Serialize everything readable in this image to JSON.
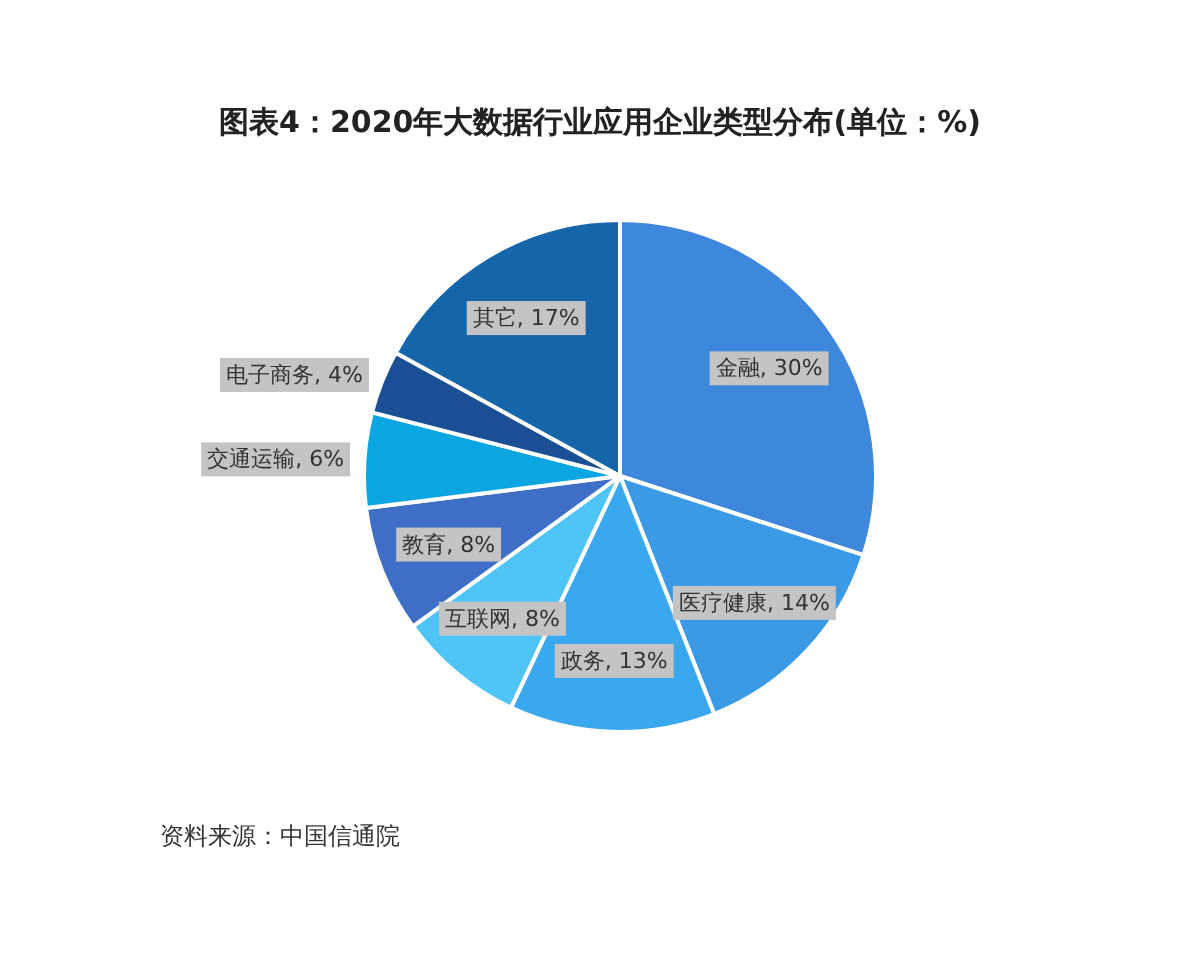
{
  "chart_data": {
    "type": "pie",
    "title": "图表4：2020年大数据行业应用企业类型分布(单位：%)",
    "categories": [
      "金融",
      "医疗健康",
      "政务",
      "互联网",
      "教育",
      "交通运输",
      "电子商务",
      "其它"
    ],
    "values": [
      30,
      14,
      13,
      8,
      8,
      6,
      4,
      17
    ],
    "colors": [
      "#3d87dc",
      "#3a9ae6",
      "#3aa8ee",
      "#4ec5f6",
      "#3f6ec6",
      "#0ba6e2",
      "#1b4f95",
      "#1565aa"
    ],
    "value_labels": [
      "30%",
      "14%",
      "13%",
      "8%",
      "8%",
      "6%",
      "4%",
      "17%"
    ],
    "annotations": [
      "资料来源：中国信通院"
    ]
  }
}
